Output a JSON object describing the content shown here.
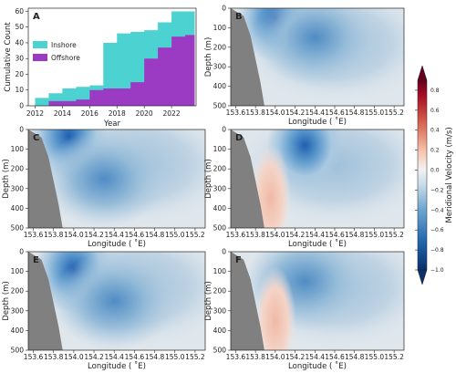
{
  "figure": {
    "colorbar": {
      "label": "Meridional Velocity (m/s)",
      "ticks": [
        "0.8",
        "0.6",
        "0.4",
        "0.2",
        "0.0",
        "−0.2",
        "−0.4",
        "−0.6",
        "−0.8",
        "−1.0"
      ],
      "range": [
        -1.0,
        0.9
      ],
      "colors": {
        "strong_negative": "#08306b",
        "negative": "#2166ac",
        "weak_negative": "#9ecae1",
        "zero": "#f2f2f2",
        "weak_positive": "#f4a582",
        "positive": "#b2182b",
        "strong_positive": "#67001f"
      }
    }
  },
  "chart_data": [
    {
      "type": "area",
      "panel": "A",
      "xlabel": "Year",
      "ylabel": "Cumulative Count",
      "x_ticks": [
        "2012",
        "2014",
        "2016",
        "2018",
        "2020",
        "2022"
      ],
      "y_ticks": [
        "0",
        "10",
        "20",
        "30",
        "40",
        "50",
        "60"
      ],
      "xlim": [
        2011.5,
        2023.8
      ],
      "ylim": [
        0,
        62
      ],
      "legend_position": "upper-left",
      "x": [
        2012,
        2013,
        2014,
        2015,
        2016,
        2017,
        2018,
        2019,
        2020,
        2021,
        2022,
        2023
      ],
      "series": [
        {
          "name": "Inshore",
          "color": "#4dd2d2",
          "values": [
            5,
            8,
            11,
            12,
            13,
            40,
            46,
            47,
            48,
            53,
            60,
            60
          ]
        },
        {
          "name": "Offshore",
          "color": "#9b3bc4",
          "values": [
            0,
            3,
            3,
            4,
            10,
            11,
            11,
            15,
            30,
            37,
            44,
            45
          ]
        }
      ]
    },
    {
      "type": "heatmap",
      "panel": "B",
      "xlabel": "Longitude ( ˚E)",
      "ylabel": "Depth (m)",
      "xlim": [
        153.55,
        155.3
      ],
      "ylim": [
        500,
        0
      ],
      "x_ticks": [
        "153.6",
        "153.8",
        "154.0",
        "154.2",
        "154.4",
        "154.6",
        "154.8",
        "155.0",
        "155.2"
      ],
      "y_ticks": [
        "0",
        "100",
        "200",
        "300",
        "400",
        "500"
      ],
      "features": [
        {
          "lon": 154.0,
          "depth": 50,
          "value": -0.6
        },
        {
          "lon": 154.4,
          "depth": 150,
          "value": -0.25
        }
      ]
    },
    {
      "type": "heatmap",
      "panel": "C",
      "xlabel": "Longitude ( ˚E)",
      "ylabel": "Depth (m)",
      "xlim": [
        153.55,
        155.3
      ],
      "ylim": [
        500,
        0
      ],
      "x_ticks": [
        "153.6",
        "153.8",
        "154.0",
        "154.2",
        "154.4",
        "154.6",
        "154.8",
        "155.0",
        "155.2"
      ],
      "y_ticks": [
        "0",
        "100",
        "200",
        "300",
        "400",
        "500"
      ],
      "features": [
        {
          "lon": 153.95,
          "depth": 30,
          "value": -0.9
        },
        {
          "lon": 154.3,
          "depth": 250,
          "value": -0.35
        }
      ]
    },
    {
      "type": "heatmap",
      "panel": "D",
      "xlabel": "Longitude ( ˚E)",
      "ylabel": "Depth (m)",
      "xlim": [
        153.55,
        155.3
      ],
      "ylim": [
        500,
        0
      ],
      "x_ticks": [
        "153.6",
        "153.8",
        "154.0",
        "154.2",
        "154.4",
        "154.6",
        "154.8",
        "155.0",
        "155.2"
      ],
      "y_ticks": [
        "0",
        "100",
        "200",
        "300",
        "400",
        "500"
      ],
      "features": [
        {
          "lon": 154.3,
          "depth": 80,
          "value": -0.75
        },
        {
          "lon": 153.95,
          "depth": 350,
          "value": 0.15
        }
      ]
    },
    {
      "type": "heatmap",
      "panel": "E",
      "xlabel": "Longitude ( ˚E)",
      "ylabel": "Depth (m)",
      "xlim": [
        153.55,
        155.3
      ],
      "ylim": [
        500,
        0
      ],
      "x_ticks": [
        "153.6",
        "153.8",
        "154.0",
        "154.2",
        "154.4",
        "154.6",
        "154.8",
        "155.0",
        "155.2"
      ],
      "y_ticks": [
        "0",
        "100",
        "200",
        "300",
        "400",
        "500"
      ],
      "features": [
        {
          "lon": 154.0,
          "depth": 90,
          "value": -0.8
        },
        {
          "lon": 154.4,
          "depth": 250,
          "value": -0.3
        }
      ]
    },
    {
      "type": "heatmap",
      "panel": "F",
      "xlabel": "Longitude ( ˚E)",
      "ylabel": "Depth (m)",
      "xlim": [
        153.55,
        155.3
      ],
      "ylim": [
        500,
        0
      ],
      "x_ticks": [
        "153.6",
        "153.8",
        "154.0",
        "154.2",
        "154.4",
        "154.6",
        "154.8",
        "155.0",
        "155.2"
      ],
      "y_ticks": [
        "0",
        "100",
        "200",
        "300",
        "400",
        "500"
      ],
      "features": [
        {
          "lon": 154.3,
          "depth": 150,
          "value": -0.25
        },
        {
          "lon": 154.0,
          "depth": 350,
          "value": 0.1
        }
      ]
    }
  ]
}
